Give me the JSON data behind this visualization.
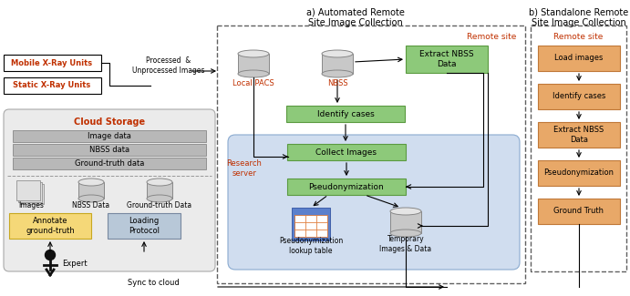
{
  "title_a": "a) Automated Remote\nSite Image Collection",
  "title_b": "b) Standalone Remote\nSite Image Collection",
  "colors": {
    "green_box": "#8DC97A",
    "green_border": "#5A9A40",
    "orange_box": "#E8A868",
    "orange_border": "#C07838",
    "gray_row": "#B8B8B8",
    "gray_row_border": "#888888",
    "yellow_box": "#F5D878",
    "yellow_border": "#C8A820",
    "loading_box": "#B8C8D8",
    "loading_border": "#7888A0",
    "light_blue_bg": "#D0DDEF",
    "light_blue_border": "#8AAAD0",
    "cloud_bg": "#EBEBEB",
    "cloud_border": "#AAAAAA",
    "red_text": "#C03000",
    "cyl_face": "#C8C8C8",
    "cyl_border": "#888888",
    "cyl_top": "#E0E0E0"
  },
  "cloud_rows": [
    "Image data",
    "NBSS data",
    "Ground-truth data"
  ],
  "standalone_boxes": [
    "Load images",
    "Identify cases",
    "Extract NBSS\nData",
    "Pseudonymization",
    "Ground Truth"
  ]
}
